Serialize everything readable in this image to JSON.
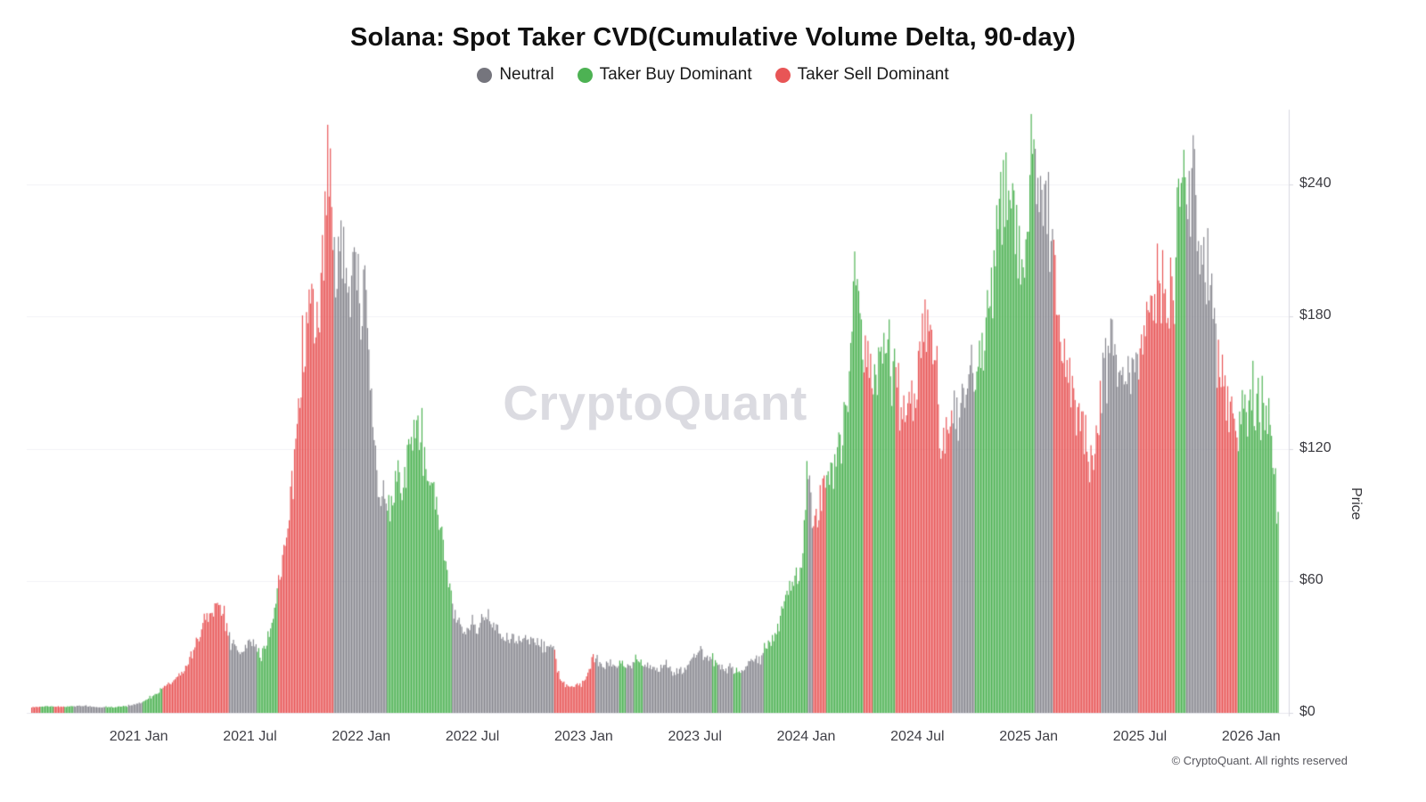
{
  "page": {
    "title": "Solana: Spot Taker CVD(Cumulative Volume Delta, 90-day)",
    "watermark": "CryptoQuant",
    "footer": "© CryptoQuant. All rights reserved"
  },
  "legend": {
    "items": [
      {
        "key": "neutral",
        "label": "Neutral",
        "color": "#75757D"
      },
      {
        "key": "buy",
        "label": "Taker Buy Dominant",
        "color": "#4DB253"
      },
      {
        "key": "sell",
        "label": "Taker Sell Dominant",
        "color": "#E85556"
      }
    ]
  },
  "y_axis": {
    "label": "Price",
    "ticks": [
      {
        "label": "$0",
        "value": 0
      },
      {
        "label": "$60",
        "value": 60
      },
      {
        "label": "$120",
        "value": 120
      },
      {
        "label": "$180",
        "value": 180
      },
      {
        "label": "$240",
        "value": 240
      }
    ]
  },
  "x_axis": {
    "ticks": [
      {
        "label": "2021 Jan",
        "t": 5
      },
      {
        "label": "2021 Jul",
        "t": 11
      },
      {
        "label": "2022 Jan",
        "t": 17
      },
      {
        "label": "2022 Jul",
        "t": 23
      },
      {
        "label": "2023 Jan",
        "t": 29
      },
      {
        "label": "2023 Jul",
        "t": 35
      },
      {
        "label": "2024 Jan",
        "t": 41
      },
      {
        "label": "2024 Jul",
        "t": 47
      },
      {
        "label": "2025 Jan",
        "t": 53
      },
      {
        "label": "2025 Jul",
        "t": 59
      },
      {
        "label": "2026 Jan",
        "t": 65
      }
    ]
  },
  "chart_data": {
    "type": "bar",
    "title": "Solana: Spot Taker CVD(Cumulative Volume Delta, 90-day)",
    "ylabel": "Price",
    "y_unit": "USD",
    "ylim": [
      0,
      272
    ],
    "grid": "horizontal-faint",
    "legend_position": "top-center",
    "x_time_axis": {
      "origin_month": "2020-08",
      "t_unit": "months_since_origin",
      "t_min": -0.8,
      "t_max": 66.5
    },
    "colors": {
      "neutral": "#87878F",
      "buy": "#4DB253",
      "sell": "#E85556"
    },
    "keyframes_note": "Approximate SOL daily price contour: [t_months_since_2020-08, price_usd]",
    "keyframes": [
      [
        -0.8,
        2.5
      ],
      [
        0,
        3
      ],
      [
        1,
        2.8
      ],
      [
        2,
        3.2
      ],
      [
        3,
        2.6
      ],
      [
        4,
        2.8
      ],
      [
        4.6,
        3.5
      ],
      [
        5,
        4.5
      ],
      [
        5.5,
        6
      ],
      [
        6,
        9
      ],
      [
        6.5,
        13
      ],
      [
        7,
        15
      ],
      [
        7.5,
        20
      ],
      [
        8,
        28
      ],
      [
        8.5,
        42
      ],
      [
        9,
        45
      ],
      [
        9.3,
        48
      ],
      [
        9.6,
        42
      ],
      [
        10,
        33
      ],
      [
        10.5,
        27
      ],
      [
        11,
        34
      ],
      [
        11.3,
        30
      ],
      [
        11.6,
        26
      ],
      [
        12,
        35
      ],
      [
        12.3,
        44
      ],
      [
        12.6,
        62
      ],
      [
        13,
        80
      ],
      [
        13.3,
        110
      ],
      [
        13.6,
        140
      ],
      [
        14,
        165
      ],
      [
        14.3,
        186
      ],
      [
        14.6,
        170
      ],
      [
        15,
        210
      ],
      [
        15.2,
        258
      ],
      [
        15.4,
        235
      ],
      [
        15.6,
        196
      ],
      [
        16,
        212
      ],
      [
        16.3,
        190
      ],
      [
        16.6,
        200
      ],
      [
        17,
        178
      ],
      [
        17.2,
        205
      ],
      [
        17.5,
        148
      ],
      [
        17.8,
        112
      ],
      [
        18,
        96
      ],
      [
        18.3,
        102
      ],
      [
        18.6,
        92
      ],
      [
        19,
        108
      ],
      [
        19.3,
        100
      ],
      [
        19.6,
        122
      ],
      [
        20,
        134
      ],
      [
        20.3,
        118
      ],
      [
        20.6,
        108
      ],
      [
        21,
        96
      ],
      [
        21.4,
        78
      ],
      [
        21.8,
        56
      ],
      [
        22.2,
        40
      ],
      [
        22.6,
        36
      ],
      [
        23,
        42
      ],
      [
        23.3,
        38
      ],
      [
        23.6,
        46
      ],
      [
        24,
        40
      ],
      [
        24.5,
        36
      ],
      [
        25,
        34
      ],
      [
        25.5,
        33
      ],
      [
        26,
        33
      ],
      [
        26.5,
        32
      ],
      [
        27,
        31
      ],
      [
        27.4,
        29
      ],
      [
        27.7,
        16
      ],
      [
        28,
        13
      ],
      [
        28.4,
        12
      ],
      [
        28.8,
        13
      ],
      [
        29.2,
        17
      ],
      [
        29.5,
        25
      ],
      [
        29.8,
        23
      ],
      [
        30.2,
        22
      ],
      [
        30.6,
        21
      ],
      [
        31,
        23
      ],
      [
        31.5,
        21
      ],
      [
        32,
        24
      ],
      [
        32.5,
        21
      ],
      [
        33,
        20
      ],
      [
        33.5,
        21
      ],
      [
        34,
        19
      ],
      [
        34.5,
        20
      ],
      [
        35,
        25
      ],
      [
        35.3,
        29
      ],
      [
        35.6,
        26
      ],
      [
        36,
        24
      ],
      [
        36.4,
        21
      ],
      [
        36.8,
        20
      ],
      [
        37.2,
        19
      ],
      [
        37.6,
        20
      ],
      [
        38,
        23
      ],
      [
        38.4,
        24
      ],
      [
        38.8,
        28
      ],
      [
        39.2,
        34
      ],
      [
        39.6,
        42
      ],
      [
        40,
        56
      ],
      [
        40.4,
        60
      ],
      [
        40.8,
        68
      ],
      [
        41,
        98
      ],
      [
        41.2,
        102
      ],
      [
        41.5,
        84
      ],
      [
        41.8,
        98
      ],
      [
        42.2,
        104
      ],
      [
        42.6,
        112
      ],
      [
        43,
        132
      ],
      [
        43.3,
        150
      ],
      [
        43.6,
        202
      ],
      [
        43.9,
        188
      ],
      [
        44.2,
        172
      ],
      [
        44.5,
        152
      ],
      [
        44.8,
        148
      ],
      [
        45.1,
        172
      ],
      [
        45.4,
        168
      ],
      [
        45.7,
        164
      ],
      [
        46,
        152
      ],
      [
        46.3,
        136
      ],
      [
        46.6,
        142
      ],
      [
        47,
        148
      ],
      [
        47.3,
        186
      ],
      [
        47.6,
        172
      ],
      [
        48,
        156
      ],
      [
        48.3,
        116
      ],
      [
        48.6,
        134
      ],
      [
        49,
        136
      ],
      [
        49.4,
        148
      ],
      [
        49.8,
        152
      ],
      [
        50.2,
        156
      ],
      [
        50.6,
        170
      ],
      [
        51,
        188
      ],
      [
        51.4,
        224
      ],
      [
        51.8,
        242
      ],
      [
        52.2,
        228
      ],
      [
        52.6,
        198
      ],
      [
        53,
        218
      ],
      [
        53.2,
        262
      ],
      [
        53.5,
        238
      ],
      [
        53.8,
        222
      ],
      [
        54.1,
        232
      ],
      [
        54.4,
        196
      ],
      [
        54.7,
        172
      ],
      [
        55,
        168
      ],
      [
        55.3,
        148
      ],
      [
        55.6,
        136
      ],
      [
        56,
        128
      ],
      [
        56.3,
        110
      ],
      [
        56.6,
        122
      ],
      [
        57,
        152
      ],
      [
        57.4,
        172
      ],
      [
        57.8,
        158
      ],
      [
        58.2,
        148
      ],
      [
        58.6,
        156
      ],
      [
        59,
        162
      ],
      [
        59.4,
        178
      ],
      [
        59.8,
        196
      ],
      [
        60.2,
        206
      ],
      [
        60.5,
        186
      ],
      [
        60.8,
        198
      ],
      [
        61.1,
        232
      ],
      [
        61.3,
        246
      ],
      [
        61.6,
        236
      ],
      [
        62,
        226
      ],
      [
        62.4,
        206
      ],
      [
        62.8,
        196
      ],
      [
        63.2,
        162
      ],
      [
        63.6,
        146
      ],
      [
        64,
        134
      ],
      [
        64.3,
        124
      ],
      [
        64.6,
        140
      ],
      [
        65,
        145
      ],
      [
        65.3,
        138
      ],
      [
        65.6,
        132
      ],
      [
        66,
        128
      ],
      [
        66.5,
        95
      ]
    ],
    "color_segments": [
      {
        "from": -0.8,
        "to": -0.3,
        "regime": "sell"
      },
      {
        "from": -0.3,
        "to": 0.4,
        "regime": "buy"
      },
      {
        "from": 0.4,
        "to": 1.0,
        "regime": "sell"
      },
      {
        "from": 1.0,
        "to": 1.5,
        "regime": "buy"
      },
      {
        "from": 1.5,
        "to": 3.2,
        "regime": "neutral"
      },
      {
        "from": 3.2,
        "to": 4.4,
        "regime": "buy"
      },
      {
        "from": 4.4,
        "to": 5.2,
        "regime": "neutral"
      },
      {
        "from": 5.2,
        "to": 6.3,
        "regime": "buy"
      },
      {
        "from": 6.3,
        "to": 9.9,
        "regime": "sell"
      },
      {
        "from": 9.9,
        "to": 11.4,
        "regime": "neutral"
      },
      {
        "from": 11.4,
        "to": 12.5,
        "regime": "buy"
      },
      {
        "from": 12.5,
        "to": 15.5,
        "regime": "sell"
      },
      {
        "from": 15.5,
        "to": 18.4,
        "regime": "neutral"
      },
      {
        "from": 18.4,
        "to": 21.9,
        "regime": "buy"
      },
      {
        "from": 21.9,
        "to": 27.4,
        "regime": "neutral"
      },
      {
        "from": 27.4,
        "to": 29.6,
        "regime": "sell"
      },
      {
        "from": 29.6,
        "to": 30.9,
        "regime": "neutral"
      },
      {
        "from": 30.9,
        "to": 31.3,
        "regime": "buy"
      },
      {
        "from": 31.3,
        "to": 31.7,
        "regime": "neutral"
      },
      {
        "from": 31.7,
        "to": 32.2,
        "regime": "buy"
      },
      {
        "from": 32.2,
        "to": 35.9,
        "regime": "neutral"
      },
      {
        "from": 35.9,
        "to": 36.2,
        "regime": "buy"
      },
      {
        "from": 36.2,
        "to": 37.1,
        "regime": "neutral"
      },
      {
        "from": 37.1,
        "to": 37.5,
        "regime": "buy"
      },
      {
        "from": 37.5,
        "to": 38.7,
        "regime": "neutral"
      },
      {
        "from": 38.7,
        "to": 41.05,
        "regime": "buy"
      },
      {
        "from": 41.05,
        "to": 41.35,
        "regime": "neutral"
      },
      {
        "from": 41.35,
        "to": 42.1,
        "regime": "sell"
      },
      {
        "from": 42.1,
        "to": 44.1,
        "regime": "buy"
      },
      {
        "from": 44.1,
        "to": 44.6,
        "regime": "sell"
      },
      {
        "from": 44.6,
        "to": 45.8,
        "regime": "buy"
      },
      {
        "from": 45.8,
        "to": 48.9,
        "regime": "sell"
      },
      {
        "from": 48.9,
        "to": 50.1,
        "regime": "neutral"
      },
      {
        "from": 50.1,
        "to": 53.35,
        "regime": "buy"
      },
      {
        "from": 53.35,
        "to": 54.3,
        "regime": "neutral"
      },
      {
        "from": 54.3,
        "to": 56.9,
        "regime": "sell"
      },
      {
        "from": 56.9,
        "to": 58.9,
        "regime": "neutral"
      },
      {
        "from": 58.9,
        "to": 60.9,
        "regime": "sell"
      },
      {
        "from": 60.9,
        "to": 61.5,
        "regime": "buy"
      },
      {
        "from": 61.5,
        "to": 63.1,
        "regime": "neutral"
      },
      {
        "from": 63.1,
        "to": 64.3,
        "regime": "sell"
      },
      {
        "from": 64.3,
        "to": 66.5,
        "regime": "buy"
      }
    ]
  }
}
